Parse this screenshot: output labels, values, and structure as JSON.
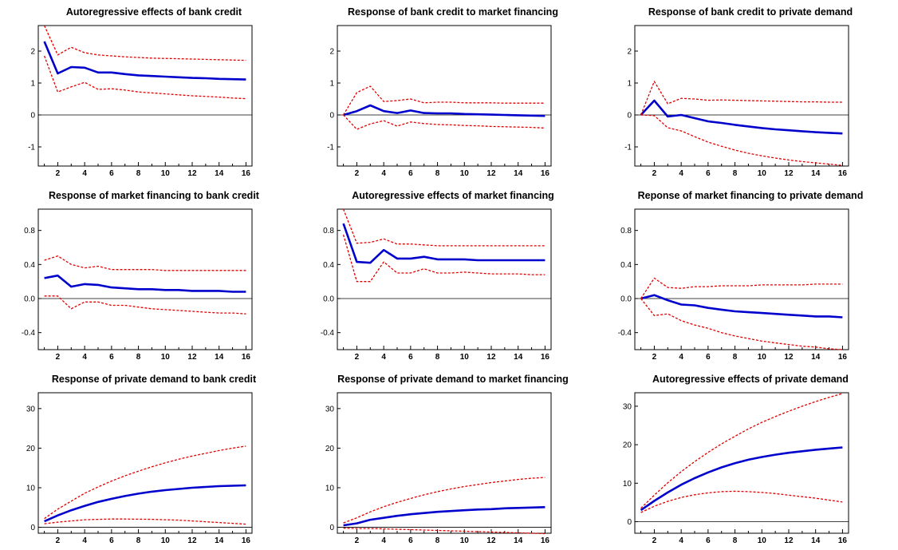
{
  "colors": {
    "response": "#0000cc",
    "band": "#e00000",
    "frame": "#000000",
    "zero_line": "#000000"
  },
  "chart_data": [
    {
      "type": "line",
      "title": "Autoregressive effects of bank credit",
      "x": [
        1,
        2,
        3,
        4,
        5,
        6,
        7,
        8,
        9,
        10,
        11,
        12,
        13,
        14,
        15,
        16
      ],
      "xticks": [
        2,
        4,
        6,
        8,
        10,
        12,
        14,
        16
      ],
      "ylim": [
        -1.6,
        2.8
      ],
      "yticks": [
        -1,
        0,
        1,
        2
      ],
      "ytick_labels": [
        "-1",
        "0",
        "1",
        "2"
      ],
      "series": [
        {
          "style": "solid",
          "values": [
            2.3,
            1.3,
            1.5,
            1.48,
            1.33,
            1.33,
            1.28,
            1.24,
            1.22,
            1.2,
            1.18,
            1.16,
            1.15,
            1.13,
            1.12,
            1.11
          ]
        },
        {
          "style": "dashed",
          "values": [
            2.8,
            1.88,
            2.12,
            1.95,
            1.88,
            1.85,
            1.82,
            1.8,
            1.78,
            1.77,
            1.76,
            1.75,
            1.74,
            1.73,
            1.72,
            1.71
          ]
        },
        {
          "style": "dashed",
          "values": [
            1.85,
            0.72,
            0.88,
            1.02,
            0.8,
            0.82,
            0.78,
            0.72,
            0.69,
            0.66,
            0.63,
            0.6,
            0.58,
            0.56,
            0.53,
            0.51
          ]
        }
      ]
    },
    {
      "type": "line",
      "title": "Response of bank credit to market financing",
      "x": [
        1,
        2,
        3,
        4,
        5,
        6,
        7,
        8,
        9,
        10,
        11,
        12,
        13,
        14,
        15,
        16
      ],
      "xticks": [
        2,
        4,
        6,
        8,
        10,
        12,
        14,
        16
      ],
      "ylim": [
        -1.6,
        2.8
      ],
      "yticks": [
        -1,
        0,
        1,
        2
      ],
      "ytick_labels": [
        "-1",
        "0",
        "1",
        "2"
      ],
      "series": [
        {
          "style": "solid",
          "values": [
            0,
            0.12,
            0.3,
            0.12,
            0.06,
            0.14,
            0.06,
            0.05,
            0.05,
            0.03,
            0.02,
            0.01,
            0,
            -0.01,
            -0.02,
            -0.03
          ]
        },
        {
          "style": "dashed",
          "values": [
            0,
            0.7,
            0.9,
            0.42,
            0.45,
            0.5,
            0.38,
            0.4,
            0.4,
            0.38,
            0.38,
            0.38,
            0.37,
            0.37,
            0.37,
            0.37
          ]
        },
        {
          "style": "dashed",
          "values": [
            0,
            -0.45,
            -0.28,
            -0.18,
            -0.35,
            -0.22,
            -0.27,
            -0.3,
            -0.31,
            -0.33,
            -0.34,
            -0.36,
            -0.37,
            -0.38,
            -0.39,
            -0.41
          ]
        }
      ]
    },
    {
      "type": "line",
      "title": "Response of bank credit to private demand",
      "x": [
        1,
        2,
        3,
        4,
        5,
        6,
        7,
        8,
        9,
        10,
        11,
        12,
        13,
        14,
        15,
        16
      ],
      "xticks": [
        2,
        4,
        6,
        8,
        10,
        12,
        14,
        16
      ],
      "ylim": [
        -1.6,
        2.8
      ],
      "yticks": [
        -1,
        0,
        1,
        2
      ],
      "ytick_labels": [
        "-1",
        "0",
        "1",
        "2"
      ],
      "series": [
        {
          "style": "solid",
          "values": [
            0,
            0.45,
            -0.05,
            0,
            -0.1,
            -0.2,
            -0.25,
            -0.31,
            -0.36,
            -0.41,
            -0.45,
            -0.48,
            -0.51,
            -0.54,
            -0.56,
            -0.58
          ]
        },
        {
          "style": "dashed",
          "values": [
            0,
            1.05,
            0.35,
            0.52,
            0.5,
            0.46,
            0.47,
            0.46,
            0.45,
            0.44,
            0.43,
            0.42,
            0.41,
            0.41,
            0.4,
            0.4
          ]
        },
        {
          "style": "dashed",
          "values": [
            0,
            -0.02,
            -0.4,
            -0.5,
            -0.68,
            -0.85,
            -0.98,
            -1.1,
            -1.2,
            -1.28,
            -1.35,
            -1.41,
            -1.46,
            -1.5,
            -1.54,
            -1.58
          ]
        }
      ]
    },
    {
      "type": "line",
      "title": "Response of market financing to bank credit",
      "x": [
        1,
        2,
        3,
        4,
        5,
        6,
        7,
        8,
        9,
        10,
        11,
        12,
        13,
        14,
        15,
        16
      ],
      "xticks": [
        2,
        4,
        6,
        8,
        10,
        12,
        14,
        16
      ],
      "ylim": [
        -0.6,
        1.05
      ],
      "yticks": [
        -0.4,
        0,
        0.4,
        0.8
      ],
      "ytick_labels": [
        "-0.4",
        "0.0",
        "0.4",
        "0.8"
      ],
      "series": [
        {
          "style": "solid",
          "values": [
            0.24,
            0.27,
            0.14,
            0.17,
            0.16,
            0.13,
            0.12,
            0.11,
            0.11,
            0.1,
            0.1,
            0.09,
            0.09,
            0.09,
            0.08,
            0.08
          ]
        },
        {
          "style": "dashed",
          "values": [
            0.45,
            0.5,
            0.4,
            0.36,
            0.38,
            0.34,
            0.34,
            0.34,
            0.34,
            0.33,
            0.33,
            0.33,
            0.33,
            0.33,
            0.33,
            0.33
          ]
        },
        {
          "style": "dashed",
          "values": [
            0.03,
            0.03,
            -0.12,
            -0.04,
            -0.04,
            -0.08,
            -0.08,
            -0.1,
            -0.12,
            -0.13,
            -0.14,
            -0.15,
            -0.16,
            -0.17,
            -0.17,
            -0.18
          ]
        }
      ]
    },
    {
      "type": "line",
      "title": "Autoregressive effects of market financing",
      "x": [
        1,
        2,
        3,
        4,
        5,
        6,
        7,
        8,
        9,
        10,
        11,
        12,
        13,
        14,
        15,
        16
      ],
      "xticks": [
        2,
        4,
        6,
        8,
        10,
        12,
        14,
        16
      ],
      "ylim": [
        -0.6,
        1.05
      ],
      "yticks": [
        -0.4,
        0,
        0.4,
        0.8
      ],
      "ytick_labels": [
        "-0.4",
        "0.0",
        "0.4",
        "0.8"
      ],
      "series": [
        {
          "style": "solid",
          "values": [
            0.88,
            0.43,
            0.42,
            0.57,
            0.47,
            0.47,
            0.49,
            0.46,
            0.46,
            0.46,
            0.45,
            0.45,
            0.45,
            0.45,
            0.45,
            0.45
          ]
        },
        {
          "style": "dashed",
          "values": [
            1.05,
            0.65,
            0.66,
            0.7,
            0.64,
            0.64,
            0.63,
            0.62,
            0.62,
            0.62,
            0.62,
            0.62,
            0.62,
            0.62,
            0.62,
            0.62
          ]
        },
        {
          "style": "dashed",
          "values": [
            0.75,
            0.2,
            0.2,
            0.43,
            0.3,
            0.3,
            0.35,
            0.3,
            0.3,
            0.31,
            0.3,
            0.29,
            0.29,
            0.29,
            0.28,
            0.28
          ]
        }
      ]
    },
    {
      "type": "line",
      "title": "Reponse of market financing to private demand",
      "x": [
        1,
        2,
        3,
        4,
        5,
        6,
        7,
        8,
        9,
        10,
        11,
        12,
        13,
        14,
        15,
        16
      ],
      "xticks": [
        2,
        4,
        6,
        8,
        10,
        12,
        14,
        16
      ],
      "ylim": [
        -0.6,
        1.05
      ],
      "yticks": [
        -0.4,
        0,
        0.4,
        0.8
      ],
      "ytick_labels": [
        "-0.4",
        "0.0",
        "0.4",
        "0.8"
      ],
      "series": [
        {
          "style": "solid",
          "values": [
            0,
            0.04,
            -0.02,
            -0.07,
            -0.08,
            -0.11,
            -0.13,
            -0.15,
            -0.16,
            -0.17,
            -0.18,
            -0.19,
            -0.2,
            -0.21,
            -0.21,
            -0.22
          ]
        },
        {
          "style": "dashed",
          "values": [
            0,
            0.24,
            0.13,
            0.12,
            0.14,
            0.14,
            0.15,
            0.15,
            0.15,
            0.16,
            0.16,
            0.16,
            0.16,
            0.17,
            0.17,
            0.17
          ]
        },
        {
          "style": "dashed",
          "values": [
            0,
            -0.2,
            -0.18,
            -0.26,
            -0.31,
            -0.35,
            -0.4,
            -0.44,
            -0.47,
            -0.5,
            -0.52,
            -0.54,
            -0.56,
            -0.57,
            -0.59,
            -0.6
          ]
        }
      ]
    },
    {
      "type": "line",
      "title": "Response of private demand to bank credit",
      "x": [
        1,
        2,
        3,
        4,
        5,
        6,
        7,
        8,
        9,
        10,
        11,
        12,
        13,
        14,
        15,
        16
      ],
      "xticks": [
        2,
        4,
        6,
        8,
        10,
        12,
        14,
        16
      ],
      "ylim": [
        -1.5,
        34
      ],
      "yticks": [
        0,
        10,
        20,
        30
      ],
      "ytick_labels": [
        "0",
        "10",
        "20",
        "30"
      ],
      "series": [
        {
          "style": "solid",
          "values": [
            1.5,
            3,
            4.3,
            5.4,
            6.4,
            7.2,
            7.9,
            8.5,
            9,
            9.4,
            9.7,
            10,
            10.2,
            10.4,
            10.5,
            10.6
          ]
        },
        {
          "style": "dashed",
          "values": [
            2.2,
            4.6,
            6.6,
            8.6,
            10.2,
            11.7,
            13,
            14.2,
            15.3,
            16.3,
            17.2,
            18,
            18.7,
            19.4,
            20,
            20.5
          ]
        },
        {
          "style": "dashed",
          "values": [
            0.9,
            1.3,
            1.6,
            1.9,
            2,
            2.1,
            2.1,
            2.05,
            2,
            1.9,
            1.8,
            1.6,
            1.4,
            1.2,
            1,
            0.8
          ]
        }
      ]
    },
    {
      "type": "line",
      "title": "Response of private demand to market financing",
      "x": [
        1,
        2,
        3,
        4,
        5,
        6,
        7,
        8,
        9,
        10,
        11,
        12,
        13,
        14,
        15,
        16
      ],
      "xticks": [
        2,
        4,
        6,
        8,
        10,
        12,
        14,
        16
      ],
      "ylim": [
        -1.5,
        34
      ],
      "yticks": [
        0,
        10,
        20,
        30
      ],
      "ytick_labels": [
        "0",
        "10",
        "20",
        "30"
      ],
      "series": [
        {
          "style": "solid",
          "values": [
            0.5,
            1,
            1.9,
            2.4,
            2.9,
            3.3,
            3.6,
            3.9,
            4.1,
            4.3,
            4.5,
            4.6,
            4.8,
            4.9,
            5,
            5.1
          ]
        },
        {
          "style": "dashed",
          "values": [
            1.1,
            2.4,
            3.9,
            5.2,
            6.3,
            7.3,
            8.2,
            9,
            9.7,
            10.3,
            10.8,
            11.3,
            11.7,
            12.1,
            12.4,
            12.6
          ]
        },
        {
          "style": "dashed",
          "values": [
            -0.2,
            -0.3,
            -0.3,
            -0.4,
            -0.5,
            -0.6,
            -0.7,
            -0.8,
            -0.9,
            -1,
            -1.1,
            -1.2,
            -1.3,
            -1.4,
            -1.5,
            -1.6
          ]
        }
      ]
    },
    {
      "type": "line",
      "title": "Autoregressive effects of private demand",
      "x": [
        1,
        2,
        3,
        4,
        5,
        6,
        7,
        8,
        9,
        10,
        11,
        12,
        13,
        14,
        15,
        16
      ],
      "xticks": [
        2,
        4,
        6,
        8,
        10,
        12,
        14,
        16
      ],
      "ylim": [
        -3,
        33.5
      ],
      "yticks": [
        0,
        10,
        20,
        30
      ],
      "ytick_labels": [
        "0",
        "10",
        "20",
        "30"
      ],
      "series": [
        {
          "style": "solid",
          "values": [
            3,
            5.4,
            7.6,
            9.6,
            11.3,
            12.8,
            14.1,
            15.2,
            16.1,
            16.8,
            17.4,
            17.9,
            18.3,
            18.7,
            19,
            19.3
          ]
        },
        {
          "style": "dashed",
          "values": [
            3.5,
            6.9,
            10.1,
            13,
            15.6,
            18,
            20.2,
            22.2,
            24.1,
            25.8,
            27.3,
            28.7,
            30,
            31.2,
            32.3,
            33.3
          ]
        },
        {
          "style": "dashed",
          "values": [
            2.4,
            4,
            5.3,
            6.3,
            7,
            7.5,
            7.8,
            7.9,
            7.8,
            7.6,
            7.3,
            6.9,
            6.5,
            6.1,
            5.6,
            5.1
          ]
        }
      ]
    }
  ]
}
